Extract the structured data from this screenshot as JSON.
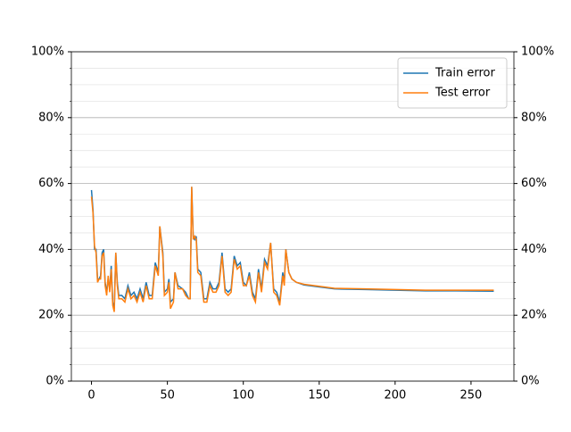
{
  "chart_data": {
    "type": "line",
    "x": [
      0,
      1,
      2,
      3,
      4,
      5,
      6,
      7,
      8,
      9,
      10,
      11,
      12,
      13,
      14,
      15,
      16,
      17,
      18,
      20,
      22,
      24,
      26,
      28,
      30,
      32,
      34,
      36,
      38,
      40,
      42,
      44,
      45,
      47,
      48,
      50,
      51,
      52,
      54,
      55,
      57,
      60,
      62,
      64,
      65,
      66,
      67,
      68,
      69,
      70,
      72,
      74,
      76,
      78,
      80,
      82,
      84,
      86,
      88,
      90,
      92,
      94,
      96,
      98,
      100,
      102,
      104,
      106,
      108,
      110,
      112,
      114,
      116,
      118,
      120,
      122,
      124,
      126,
      127,
      128,
      130,
      132,
      135,
      140,
      150,
      160,
      180,
      200,
      220,
      240,
      265
    ],
    "series": [
      {
        "name": "Train error",
        "color": "#1f77b4",
        "values": [
          58,
          52,
          40,
          40,
          31,
          31,
          32,
          39,
          40,
          30,
          27,
          31,
          28,
          35,
          24,
          22,
          39,
          30,
          26,
          26,
          25,
          29,
          26,
          27,
          25,
          28,
          25,
          30,
          26,
          26,
          36,
          33,
          47,
          39,
          27,
          28,
          31,
          24,
          25,
          33,
          29,
          28,
          27,
          25,
          25,
          59,
          44,
          43,
          44,
          34,
          33,
          25,
          25,
          30,
          28,
          28,
          30,
          39,
          28,
          27,
          28,
          38,
          35,
          36,
          30,
          29,
          33,
          27,
          25,
          34,
          28,
          37,
          35,
          42,
          28,
          27,
          24,
          33,
          30,
          40,
          33,
          31,
          30,
          29.2,
          28.6,
          28,
          27.8,
          27.6,
          27.4,
          27.4,
          27.3
        ]
      },
      {
        "name": "Test error",
        "color": "#ff7f0e",
        "values": [
          56,
          51,
          41,
          39,
          30,
          31,
          31,
          38,
          39,
          29,
          26,
          32,
          27,
          34,
          23,
          21,
          39,
          29,
          25,
          25,
          24,
          28,
          25,
          26,
          24,
          27,
          24,
          29,
          25,
          25,
          35,
          32,
          47,
          38,
          26,
          27,
          30,
          22,
          24,
          33,
          28,
          28,
          26,
          25,
          25,
          59,
          43,
          44,
          43,
          33,
          32,
          24,
          24,
          29,
          27,
          27,
          29,
          38,
          27,
          26,
          27,
          37,
          34,
          35,
          29,
          29,
          32,
          26,
          24,
          33,
          27,
          36,
          34,
          42,
          27,
          26,
          23,
          32,
          29,
          40,
          33,
          31,
          30,
          29.4,
          28.8,
          28.2,
          28,
          27.8,
          27.6,
          27.6,
          27.6
        ]
      }
    ],
    "xlim": [
      -13.25,
      278.25
    ],
    "xticks": [
      0,
      50,
      100,
      150,
      200,
      250
    ],
    "ylim": [
      0,
      100
    ],
    "yticks": [
      {
        "value": 0,
        "label": "0%"
      },
      {
        "value": 20,
        "label": "20%"
      },
      {
        "value": 40,
        "label": "40%"
      },
      {
        "value": 60,
        "label": "60%"
      },
      {
        "value": 80,
        "label": "80%"
      },
      {
        "value": 100,
        "label": "100%"
      }
    ],
    "y2lim": [
      0,
      100
    ],
    "y2ticks": [
      {
        "value": 0,
        "label": "0%"
      },
      {
        "value": 20,
        "label": "20%"
      },
      {
        "value": 40,
        "label": "40%"
      },
      {
        "value": 60,
        "label": "60%"
      },
      {
        "value": 80,
        "label": "80%"
      },
      {
        "value": 100,
        "label": "100%"
      }
    ],
    "yminorticks": [
      5,
      10,
      15,
      25,
      30,
      35,
      45,
      50,
      55,
      65,
      70,
      75,
      85,
      90,
      95
    ],
    "grid": true,
    "legend": "upper right"
  }
}
